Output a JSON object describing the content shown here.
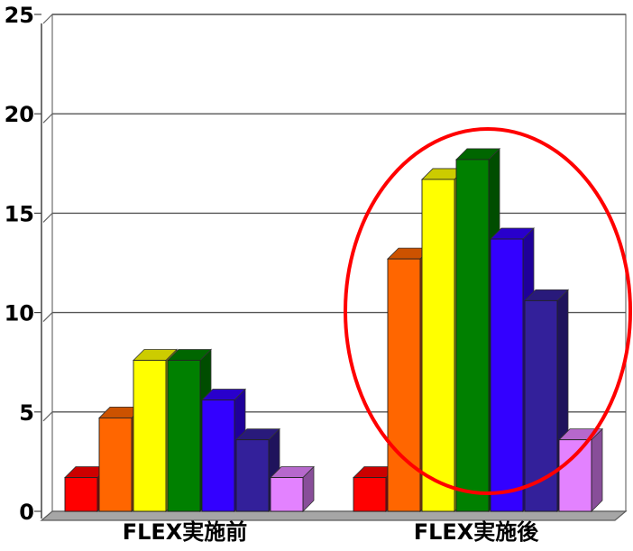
{
  "chart_data": {
    "type": "bar",
    "title": "",
    "xlabel": "",
    "ylabel": "",
    "categories": [
      "FLEX実施前",
      "FLEX実施後"
    ],
    "ylim": [
      0,
      25
    ],
    "yticks": [
      0,
      5,
      10,
      15,
      20,
      25
    ],
    "grid": true,
    "legend": "none",
    "series": [
      {
        "color": "#ff0000",
        "values": [
          1.7,
          1.7
        ]
      },
      {
        "color": "#ff6600",
        "values": [
          4.7,
          12.7
        ]
      },
      {
        "color": "#ffff00",
        "values": [
          7.6,
          16.7
        ]
      },
      {
        "color": "#008000",
        "values": [
          7.6,
          17.7
        ]
      },
      {
        "color": "#3300ff",
        "values": [
          5.6,
          13.7
        ]
      },
      {
        "color": "#33209a",
        "values": [
          3.6,
          10.6
        ]
      },
      {
        "color": "#e382ff",
        "values": [
          1.7,
          3.6
        ]
      }
    ],
    "annotations": [
      {
        "type": "ellipse",
        "target_category": "FLEX実施後",
        "color": "#ff0000"
      }
    ]
  }
}
